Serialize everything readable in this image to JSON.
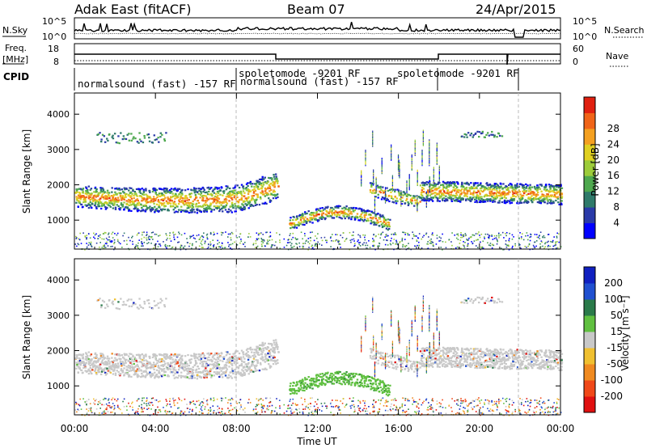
{
  "header": {
    "station": "Adak East (fitACF)",
    "beam": "Beam 07",
    "date": "24/Apr/2015"
  },
  "panels": {
    "nsky_label": "N.Sky",
    "nsearch_label": "N.Search",
    "noise_ticks": [
      "10^5",
      "10^0"
    ],
    "freq_label_1": "Freq.",
    "freq_label_2": "[MHz]",
    "freq_ticks": [
      "18",
      "8"
    ],
    "nave_label": "Nave",
    "nave_ticks": [
      "60",
      "0"
    ],
    "cpid_label": "CPID"
  },
  "cpid_segments": [
    {
      "start": 0.5,
      "end": 8.0,
      "label": "normalsound (fast) -157 RF",
      "row": "low"
    },
    {
      "start": 8.0,
      "end": 18.0,
      "label": "spoletomode -9201 RF",
      "row": "high"
    },
    {
      "start": 8.0,
      "end": 18.0,
      "label": "normalsound (fast) -157 RF",
      "row": "low"
    },
    {
      "start": 18.0,
      "end": 21.8,
      "label": "spoletomode -9201 RF",
      "row": "high"
    }
  ],
  "chart_data": [
    {
      "type": "heatmap",
      "title": "Power",
      "ylabel": "Slant Range [km]",
      "xlabel": "Time UT",
      "x_ticks": [
        "00:00",
        "04:00",
        "08:00",
        "12:00",
        "16:00",
        "20:00",
        "00:00"
      ],
      "y_ticks": [
        "1000",
        "2000",
        "3000",
        "4000"
      ],
      "ylim": [
        180,
        4600
      ],
      "xlim_hours": [
        0,
        24
      ],
      "colorbar": {
        "label": "Power [dB]",
        "ticks": [
          "4",
          "8",
          "12",
          "16",
          "20",
          "24",
          "28"
        ],
        "colors": [
          "#0000ff",
          "#2a3aa8",
          "#2f7a6a",
          "#4ea84e",
          "#9ccc3a",
          "#e0d020",
          "#f4a020",
          "#f06418",
          "#e02010"
        ]
      },
      "echo_regions": [
        {
          "name": "main band morning",
          "t": [
            0,
            10
          ],
          "range_km": [
            1300,
            2200
          ]
        },
        {
          "name": "upper patches",
          "t": [
            1,
            4.5
          ],
          "range_km": [
            3100,
            3600
          ]
        },
        {
          "name": "afternoon arc",
          "t": [
            10.5,
            15.5
          ],
          "range_km": [
            650,
            1400
          ]
        },
        {
          "name": "evening band",
          "t": [
            17,
            24
          ],
          "range_km": [
            1300,
            2200
          ]
        }
      ]
    },
    {
      "type": "heatmap",
      "title": "Velocity",
      "ylabel": "Slant Range [km]",
      "xlabel": "Time UT",
      "x_ticks": [
        "00:00",
        "04:00",
        "08:00",
        "12:00",
        "16:00",
        "20:00",
        "00:00"
      ],
      "y_ticks": [
        "1000",
        "2000",
        "3000",
        "4000"
      ],
      "ylim": [
        180,
        4600
      ],
      "colorbar": {
        "label": "Velocity [m s⁻¹]",
        "ticks": [
          "200",
          "100",
          "50",
          "15",
          "-15",
          "-50",
          "-100",
          "-200"
        ],
        "colors": [
          "#1020c0",
          "#2050d0",
          "#2a7a4a",
          "#60c040",
          "#c8c8c8",
          "#f0c030",
          "#f08a20",
          "#f04818",
          "#e01010"
        ]
      }
    }
  ],
  "x_axis_title": "Time UT"
}
